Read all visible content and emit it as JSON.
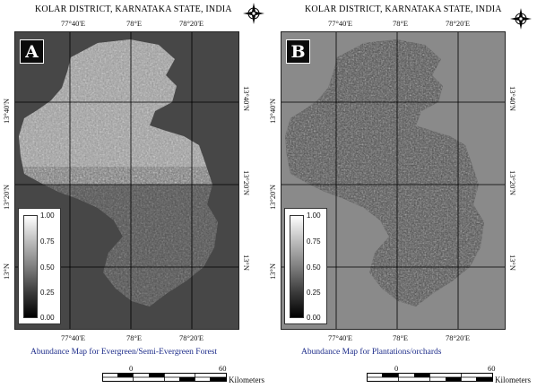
{
  "panels": [
    {
      "id": "A",
      "title": "KOLAR DISTRICT, KARNATAKA STATE, INDIA",
      "badge": "A",
      "lon_ticks": [
        "77°40'E",
        "78°E",
        "78°20'E"
      ],
      "lat_ticks": [
        "13°40'N",
        "13°20'N",
        "13°N"
      ],
      "legend_labels": [
        "1.00",
        "0.75",
        "0.50",
        "0.25",
        "0.00"
      ],
      "caption": "Abundance Map for Evergreen/Semi-Evergreen Forest",
      "scale_start": "0",
      "scale_end": "60",
      "scale_unit": "Kilometers",
      "background_color": "#474747"
    },
    {
      "id": "B",
      "title": "KOLAR DISTRICT, KARNATAKA STATE, INDIA",
      "badge": "B",
      "lon_ticks": [
        "77°40'E",
        "78°E",
        "78°20'E"
      ],
      "lat_ticks": [
        "13°40'N",
        "13°20'N",
        "13°N"
      ],
      "legend_labels": [
        "1.00",
        "0.75",
        "0.50",
        "0.25",
        "0.00"
      ],
      "caption": "Abundance Map for Plantations/orchards",
      "scale_start": "0",
      "scale_end": "60",
      "scale_unit": "Kilometers",
      "background_color": "#8a8a8a"
    }
  ],
  "icons": [
    "north-arrow-compass-icon"
  ]
}
